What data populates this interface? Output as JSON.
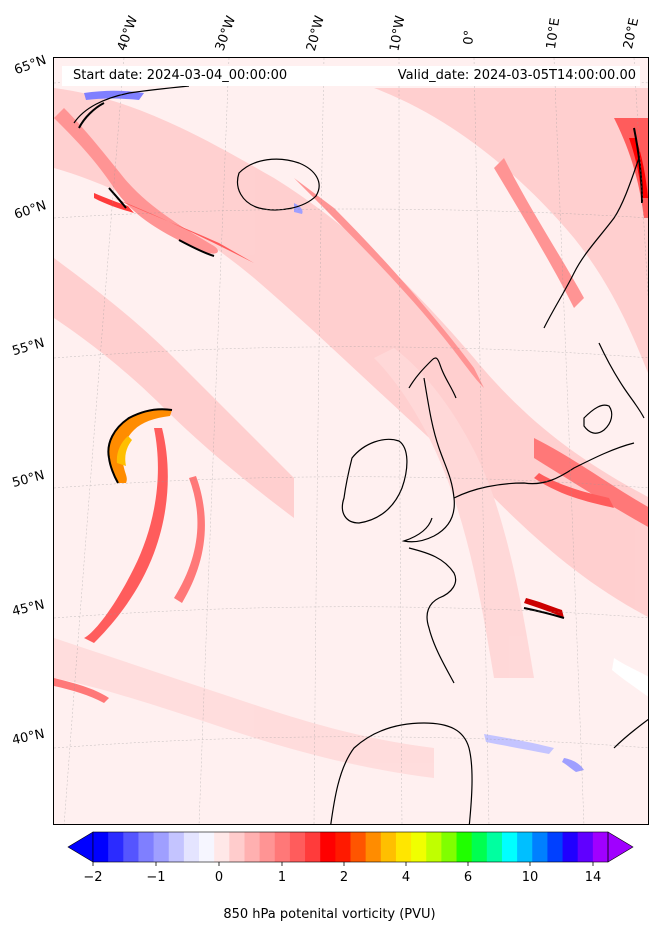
{
  "header": {
    "start_date": "Start date: 2024-03-04_00:00:00",
    "valid_date": "Valid_date: 2024-03-05T14:00:00.00"
  },
  "longitude_labels": [
    "40°W",
    "30°W",
    "20°W",
    "10°W",
    "0°",
    "10°E",
    "20°E"
  ],
  "latitude_labels": [
    "65°N",
    "60°N",
    "55°N",
    "50°N",
    "45°N",
    "40°N"
  ],
  "colorbar": {
    "label": "850 hPa potenital vorticity (PVU)",
    "ticks": [
      "−2",
      "−1",
      "0",
      "1",
      "2",
      "4",
      "6",
      "10",
      "14"
    ],
    "colors": [
      "#0000ff",
      "#2b2bff",
      "#5555ff",
      "#7f7fff",
      "#9f9fff",
      "#c4c4ff",
      "#e4e4ff",
      "#f6f6ff",
      "#ffe8e8",
      "#ffcccc",
      "#ffb0b0",
      "#ff9494",
      "#ff7878",
      "#ff5c5c",
      "#ff3b3b",
      "#ff0000",
      "#ff1a00",
      "#ff5500",
      "#ff8c00",
      "#ffbf00",
      "#ffe600",
      "#f0ff00",
      "#c0ff00",
      "#80ff00",
      "#20ff00",
      "#00ff50",
      "#00ffa0",
      "#00ffff",
      "#00bfff",
      "#0080ff",
      "#0040ff",
      "#2000ff",
      "#6000ff",
      "#a000ff"
    ]
  }
}
